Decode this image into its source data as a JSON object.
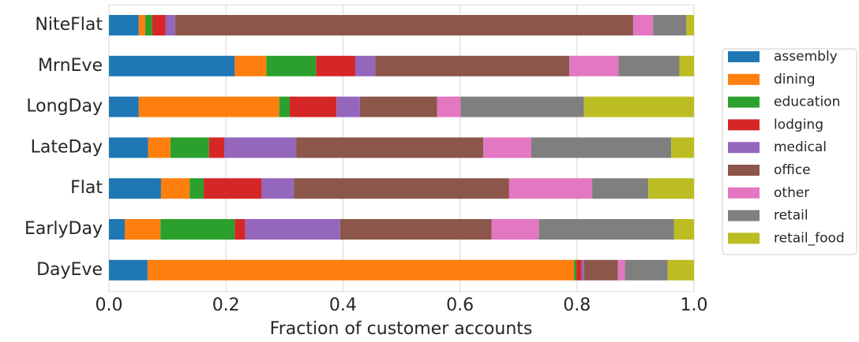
{
  "chart_data": {
    "type": "stacked-barh",
    "xlabel": "Fraction of customer accounts",
    "categories": [
      "NiteFlat",
      "MrnEve",
      "LongDay",
      "LateDay",
      "Flat",
      "EarlyDay",
      "DayEve"
    ],
    "series": [
      {
        "name": "assembly",
        "color": "#1f77b4",
        "values": [
          0.051,
          0.215,
          0.051,
          0.067,
          0.089,
          0.027,
          0.066
        ]
      },
      {
        "name": "dining",
        "color": "#ff7f0e",
        "values": [
          0.011,
          0.054,
          0.24,
          0.038,
          0.049,
          0.061,
          0.729
        ]
      },
      {
        "name": "education",
        "color": "#2ca02c",
        "values": [
          0.012,
          0.085,
          0.018,
          0.066,
          0.024,
          0.127,
          0.004
        ]
      },
      {
        "name": "lodging",
        "color": "#d62728",
        "values": [
          0.023,
          0.067,
          0.08,
          0.026,
          0.099,
          0.018,
          0.009
        ]
      },
      {
        "name": "medical",
        "color": "#9467bd",
        "values": [
          0.016,
          0.034,
          0.04,
          0.123,
          0.055,
          0.162,
          0.004
        ]
      },
      {
        "name": "office",
        "color": "#8c564b",
        "values": [
          0.783,
          0.332,
          0.132,
          0.32,
          0.368,
          0.259,
          0.058
        ]
      },
      {
        "name": "other",
        "color": "#e377c2",
        "values": [
          0.034,
          0.084,
          0.04,
          0.082,
          0.142,
          0.081,
          0.012
        ]
      },
      {
        "name": "retail",
        "color": "#7f7f7f",
        "values": [
          0.057,
          0.104,
          0.211,
          0.239,
          0.096,
          0.231,
          0.073
        ]
      },
      {
        "name": "retail_food",
        "color": "#bcbd22",
        "values": [
          0.013,
          0.025,
          0.188,
          0.039,
          0.078,
          0.034,
          0.045
        ]
      }
    ],
    "xlim": [
      0,
      1
    ],
    "xticks": [
      {
        "value": 0,
        "label": "0.0"
      },
      0.2,
      0.4,
      0.6,
      0.8,
      {
        "value": 1,
        "label": "1.0"
      }
    ],
    "grid": true,
    "legend": "right"
  }
}
